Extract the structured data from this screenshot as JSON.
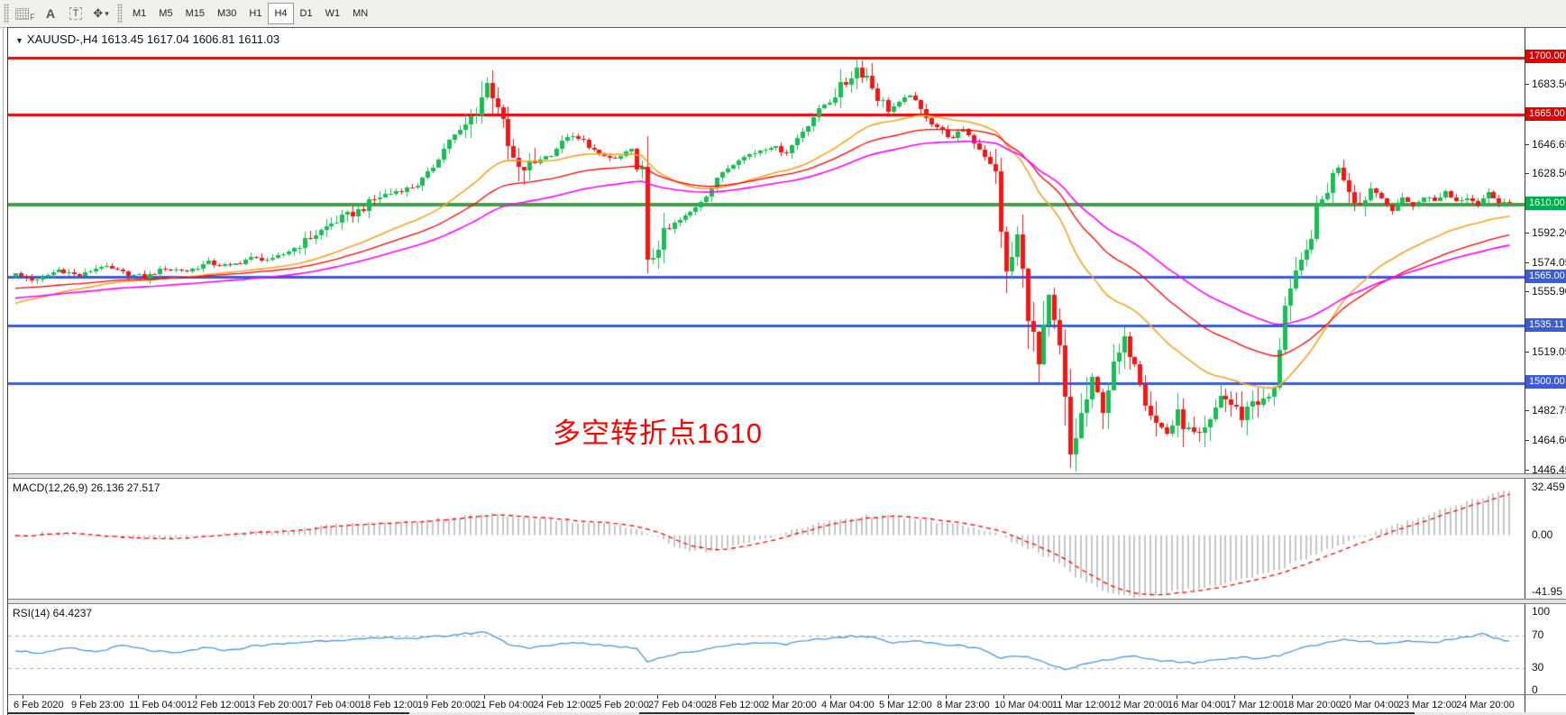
{
  "toolbar": {
    "grid_icon_letter": "F",
    "text_icon_a": "A",
    "text_icon_t": "T",
    "color_icon_glyph": "✥",
    "caret_glyph": "▾",
    "timeframes": [
      "M1",
      "M5",
      "M15",
      "M30",
      "H1",
      "H4",
      "D1",
      "W1",
      "MN"
    ],
    "active_timeframe": "H4"
  },
  "chart": {
    "dropdown_glyph": "▼",
    "title_text": "XAUUSD-,H4  1613.45 1617.04 1606.81 1611.03",
    "symbol": "XAUUSD-",
    "timeframe": "H4",
    "annotation": "多空转折点1610",
    "annotation_color": "#FF0000",
    "price_ticks": [
      {
        "label": "1683.50",
        "value": 1683.5
      },
      {
        "label": "1646.65",
        "value": 1646.65
      },
      {
        "label": "1628.50",
        "value": 1628.5
      },
      {
        "label": "1592.20",
        "value": 1592.2
      },
      {
        "label": "1574.05",
        "value": 1574.05
      },
      {
        "label": "1555.90",
        "value": 1555.9
      },
      {
        "label": "1519.05",
        "value": 1519.05
      },
      {
        "label": "1482.75",
        "value": 1482.75
      },
      {
        "label": "1464.60",
        "value": 1464.6
      },
      {
        "label": "1446.45",
        "value": 1446.45
      }
    ],
    "level_badges": [
      {
        "label": "1700.00",
        "value": 1700.0,
        "color": "#e00000"
      },
      {
        "label": "1665.00",
        "value": 1665.0,
        "color": "#e00000"
      },
      {
        "label": "1610.00",
        "value": 1610.0,
        "color": "#00ae4d"
      },
      {
        "label": "1565.00",
        "value": 1565.0,
        "color": "#3b5cd6"
      },
      {
        "label": "1535.11",
        "value": 1535.11,
        "color": "#3b5cd6"
      },
      {
        "label": "1500.00",
        "value": 1500.0,
        "color": "#3b5cd6"
      }
    ],
    "hlines": [
      {
        "value": 1700.0,
        "color": "#f00000",
        "width": 3
      },
      {
        "value": 1665.0,
        "color": "#f00000",
        "width": 3
      },
      {
        "value": 1610.0,
        "color": "#44a048",
        "width": 4
      },
      {
        "value": 1565.0,
        "color": "#3b5cd6",
        "width": 3
      },
      {
        "value": 1535.11,
        "color": "#3b5cd6",
        "width": 3
      },
      {
        "value": 1500.0,
        "color": "#3b5cd6",
        "width": 3
      }
    ]
  },
  "macd": {
    "label": "MACD(12,26,9) 26.136 27.517",
    "params": [
      12,
      26,
      9
    ],
    "main_value": "26.136",
    "signal_value": "27.517",
    "axis": [
      "32.459",
      "0.00",
      "-41.95"
    ],
    "range": {
      "max": 38,
      "min": -44
    },
    "hist_color": "#c6c6c6",
    "signal_color": "#ff0000"
  },
  "rsi": {
    "label": "RSI(14) 64.4237",
    "period": 14,
    "value": "64.4237",
    "axis": [
      "100",
      "70",
      "30",
      "0"
    ],
    "levels": [
      70,
      30
    ],
    "line_color": "#4d96d9",
    "level_color": "#ababab"
  },
  "dates": [
    "6 Feb 2020",
    "9 Feb 23:00",
    "11 Feb 04:00",
    "12 Feb 12:00",
    "13 Feb 20:00",
    "17 Feb 04:00",
    "18 Feb 12:00",
    "19 Feb 20:00",
    "21 Feb 04:00",
    "24 Feb 12:00",
    "25 Feb 20:00",
    "27 Feb 04:00",
    "28 Feb 12:00",
    "2 Mar 20:00",
    "4 Mar 04:00",
    "5 Mar 12:00",
    "8 Mar 23:00",
    "10 Mar 04:00",
    "11 Mar 12:00",
    "12 Mar 20:00",
    "16 Mar 04:00",
    "17 Mar 12:00",
    "18 Mar 20:00",
    "20 Mar 04:00",
    "23 Mar 12:00",
    "24 Mar 20:00"
  ],
  "chart_data": {
    "type": "candlestick",
    "symbol": "XAUUSD",
    "timeframe": "H4",
    "last_ohlc": {
      "open": 1613.45,
      "high": 1617.04,
      "low": 1606.81,
      "close": 1611.03
    },
    "visible_range": {
      "price_top": 1718,
      "price_bottom": 1444
    },
    "candle_count": 280,
    "up_color": "#16be54",
    "down_color": "#f51515",
    "price_path": [
      [
        0,
        1567
      ],
      [
        4,
        1563
      ],
      [
        8,
        1570
      ],
      [
        12,
        1566
      ],
      [
        16,
        1572
      ],
      [
        20,
        1568
      ],
      [
        24,
        1565
      ],
      [
        28,
        1571
      ],
      [
        32,
        1569
      ],
      [
        36,
        1574
      ],
      [
        40,
        1572
      ],
      [
        44,
        1577
      ],
      [
        48,
        1576
      ],
      [
        52,
        1583
      ],
      [
        56,
        1592
      ],
      [
        60,
        1600
      ],
      [
        64,
        1606
      ],
      [
        68,
        1615
      ],
      [
        72,
        1619
      ],
      [
        75,
        1622
      ],
      [
        78,
        1633
      ],
      [
        81,
        1650
      ],
      [
        84,
        1658
      ],
      [
        86,
        1668
      ],
      [
        88,
        1684
      ],
      [
        90,
        1672
      ],
      [
        92,
        1645
      ],
      [
        94,
        1630
      ],
      [
        96,
        1634
      ],
      [
        98,
        1638
      ],
      [
        100,
        1641
      ],
      [
        103,
        1652
      ],
      [
        106,
        1649
      ],
      [
        109,
        1640
      ],
      [
        112,
        1638
      ],
      [
        115,
        1643
      ],
      [
        117,
        1630
      ],
      [
        118,
        1572
      ],
      [
        120,
        1586
      ],
      [
        123,
        1598
      ],
      [
        126,
        1605
      ],
      [
        129,
        1616
      ],
      [
        132,
        1630
      ],
      [
        135,
        1638
      ],
      [
        138,
        1642
      ],
      [
        141,
        1646
      ],
      [
        144,
        1642
      ],
      [
        147,
        1655
      ],
      [
        150,
        1668
      ],
      [
        153,
        1678
      ],
      [
        155,
        1685
      ],
      [
        157,
        1694
      ],
      [
        159,
        1689
      ],
      [
        161,
        1676
      ],
      [
        163,
        1668
      ],
      [
        165,
        1672
      ],
      [
        167,
        1678
      ],
      [
        169,
        1668
      ],
      [
        171,
        1660
      ],
      [
        173,
        1655
      ],
      [
        175,
        1650
      ],
      [
        177,
        1657
      ],
      [
        179,
        1648
      ],
      [
        181,
        1640
      ],
      [
        183,
        1628
      ],
      [
        185,
        1565
      ],
      [
        187,
        1590
      ],
      [
        189,
        1545
      ],
      [
        191,
        1510
      ],
      [
        193,
        1550
      ],
      [
        195,
        1520
      ],
      [
        197,
        1455
      ],
      [
        199,
        1480
      ],
      [
        201,
        1500
      ],
      [
        203,
        1485
      ],
      [
        205,
        1510
      ],
      [
        207,
        1525
      ],
      [
        209,
        1515
      ],
      [
        211,
        1490
      ],
      [
        213,
        1475
      ],
      [
        215,
        1470
      ],
      [
        217,
        1480
      ],
      [
        219,
        1470
      ],
      [
        221,
        1465
      ],
      [
        223,
        1475
      ],
      [
        225,
        1493
      ],
      [
        227,
        1487
      ],
      [
        229,
        1480
      ],
      [
        231,
        1490
      ],
      [
        233,
        1488
      ],
      [
        235,
        1495
      ],
      [
        237,
        1550
      ],
      [
        239,
        1565
      ],
      [
        241,
        1580
      ],
      [
        243,
        1605
      ],
      [
        245,
        1620
      ],
      [
        247,
        1635
      ],
      [
        249,
        1620
      ],
      [
        251,
        1610
      ],
      [
        253,
        1620
      ],
      [
        255,
        1615
      ],
      [
        257,
        1605
      ],
      [
        259,
        1615
      ],
      [
        261,
        1608
      ],
      [
        263,
        1615
      ],
      [
        265,
        1612
      ],
      [
        267,
        1618
      ],
      [
        269,
        1612
      ],
      [
        271,
        1615
      ],
      [
        273,
        1610
      ],
      [
        275,
        1617
      ],
      [
        277,
        1612
      ],
      [
        279,
        1611
      ]
    ],
    "vol_zones": [
      [
        52,
        70,
        1.5
      ],
      [
        84,
        97,
        4
      ],
      [
        116,
        122,
        5
      ],
      [
        152,
        162,
        3
      ],
      [
        183,
        200,
        7
      ],
      [
        200,
        236,
        4
      ],
      [
        236,
        252,
        4
      ]
    ],
    "moving_averages": [
      {
        "name": "fast",
        "period": 34,
        "seed": 1548,
        "color": "#f7a325",
        "width": 1.6
      },
      {
        "name": "slow",
        "period": 55,
        "seed": 1558,
        "color": "#ff0000",
        "width": 1.3
      },
      {
        "name": "medium",
        "period": 80,
        "seed": 1552,
        "color": "#ff00ff",
        "width": 1.6
      }
    ],
    "macd_path": [
      [
        0,
        -1
      ],
      [
        6,
        2
      ],
      [
        12,
        1
      ],
      [
        18,
        -2
      ],
      [
        24,
        -3
      ],
      [
        30,
        -2
      ],
      [
        36,
        0
      ],
      [
        42,
        2
      ],
      [
        48,
        3
      ],
      [
        54,
        5
      ],
      [
        60,
        7
      ],
      [
        66,
        8
      ],
      [
        72,
        9
      ],
      [
        78,
        11
      ],
      [
        84,
        13
      ],
      [
        90,
        14.5
      ],
      [
        96,
        12
      ],
      [
        102,
        10
      ],
      [
        108,
        8
      ],
      [
        114,
        6
      ],
      [
        118,
        2
      ],
      [
        122,
        -6
      ],
      [
        126,
        -10
      ],
      [
        130,
        -11
      ],
      [
        134,
        -8
      ],
      [
        138,
        -4
      ],
      [
        142,
        0
      ],
      [
        146,
        4
      ],
      [
        150,
        8
      ],
      [
        154,
        11
      ],
      [
        158,
        13
      ],
      [
        162,
        13.5
      ],
      [
        166,
        12
      ],
      [
        170,
        10
      ],
      [
        174,
        8
      ],
      [
        178,
        6
      ],
      [
        182,
        2
      ],
      [
        186,
        -4
      ],
      [
        190,
        -10
      ],
      [
        194,
        -18
      ],
      [
        198,
        -28
      ],
      [
        202,
        -36
      ],
      [
        206,
        -41
      ],
      [
        210,
        -42
      ],
      [
        214,
        -40
      ],
      [
        218,
        -38
      ],
      [
        222,
        -36
      ],
      [
        226,
        -33
      ],
      [
        230,
        -30
      ],
      [
        234,
        -26
      ],
      [
        238,
        -20
      ],
      [
        242,
        -14
      ],
      [
        246,
        -8
      ],
      [
        250,
        -3
      ],
      [
        254,
        2
      ],
      [
        258,
        7
      ],
      [
        262,
        12
      ],
      [
        266,
        17
      ],
      [
        270,
        22
      ],
      [
        274,
        26
      ],
      [
        278,
        30
      ],
      [
        279,
        31
      ]
    ],
    "rsi_path": [
      [
        0,
        52
      ],
      [
        5,
        48
      ],
      [
        10,
        55
      ],
      [
        15,
        50
      ],
      [
        20,
        58
      ],
      [
        25,
        52
      ],
      [
        30,
        48
      ],
      [
        35,
        55
      ],
      [
        40,
        52
      ],
      [
        45,
        58
      ],
      [
        50,
        60
      ],
      [
        55,
        63
      ],
      [
        60,
        65
      ],
      [
        65,
        66
      ],
      [
        70,
        68
      ],
      [
        75,
        67
      ],
      [
        80,
        70
      ],
      [
        84,
        73
      ],
      [
        88,
        75
      ],
      [
        92,
        60
      ],
      [
        96,
        55
      ],
      [
        100,
        58
      ],
      [
        104,
        62
      ],
      [
        108,
        60
      ],
      [
        112,
        57
      ],
      [
        116,
        55
      ],
      [
        118,
        38
      ],
      [
        120,
        42
      ],
      [
        124,
        48
      ],
      [
        128,
        52
      ],
      [
        132,
        58
      ],
      [
        136,
        60
      ],
      [
        140,
        62
      ],
      [
        144,
        60
      ],
      [
        148,
        64
      ],
      [
        152,
        67
      ],
      [
        156,
        70
      ],
      [
        160,
        68
      ],
      [
        164,
        62
      ],
      [
        168,
        64
      ],
      [
        172,
        60
      ],
      [
        176,
        58
      ],
      [
        180,
        55
      ],
      [
        184,
        42
      ],
      [
        188,
        45
      ],
      [
        192,
        38
      ],
      [
        196,
        28
      ],
      [
        200,
        35
      ],
      [
        204,
        40
      ],
      [
        208,
        45
      ],
      [
        212,
        40
      ],
      [
        216,
        38
      ],
      [
        220,
        36
      ],
      [
        224,
        40
      ],
      [
        228,
        43
      ],
      [
        232,
        42
      ],
      [
        236,
        45
      ],
      [
        240,
        55
      ],
      [
        244,
        60
      ],
      [
        248,
        65
      ],
      [
        252,
        63
      ],
      [
        256,
        60
      ],
      [
        260,
        63
      ],
      [
        264,
        62
      ],
      [
        268,
        65
      ],
      [
        272,
        70
      ],
      [
        274,
        73
      ],
      [
        276,
        68
      ],
      [
        278,
        65
      ],
      [
        279,
        64.4
      ]
    ]
  }
}
